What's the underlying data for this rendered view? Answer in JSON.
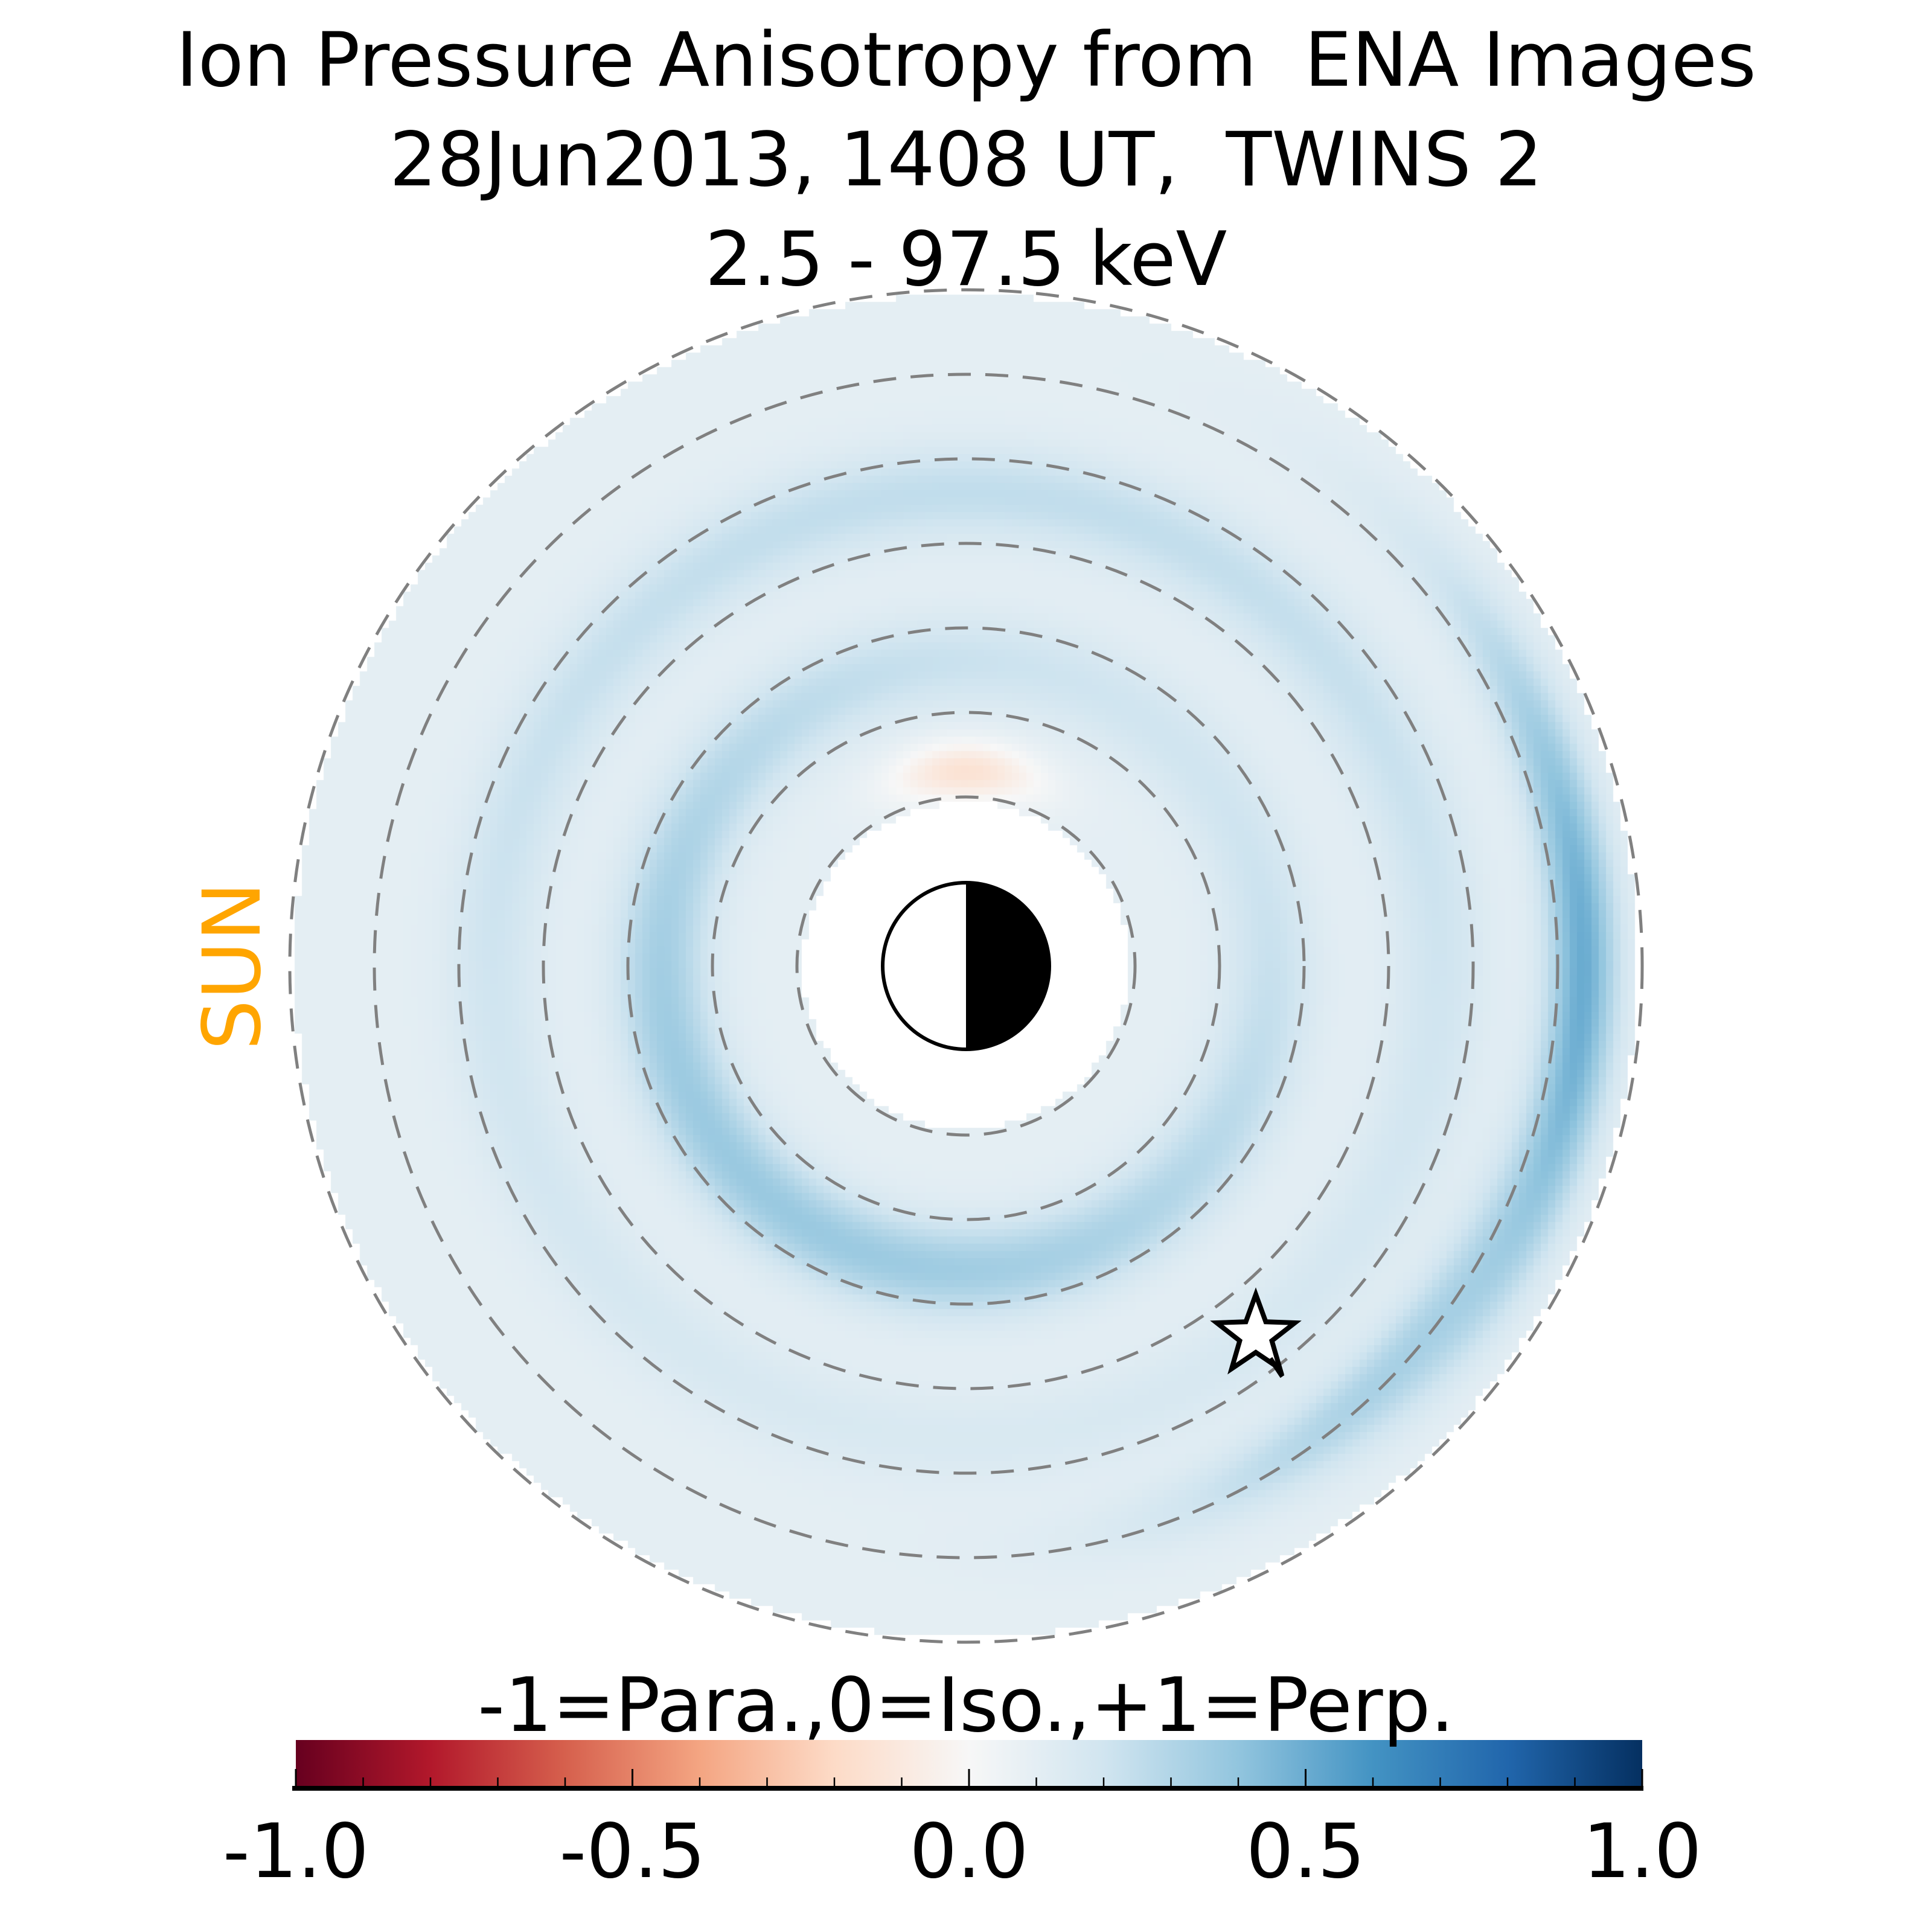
{
  "title": {
    "line1": "Ion Pressure Anisotropy from  ENA Images",
    "line2": "28Jun2013, 1408 UT,  TWINS 2",
    "line3": "2.5 - 97.5 keV"
  },
  "sun_label": "SUN",
  "sun_color": "#FFA500",
  "chart_data": {
    "type": "heatmap",
    "projection": "polar equatorial map, Sun to the left",
    "dashed_circle_radii_re": [
      2,
      3,
      4,
      5,
      6,
      7,
      8
    ],
    "inner_blank_radius_re": 2,
    "outer_radius_re": 8,
    "value_range": [
      -1,
      1
    ],
    "typical_values": {
      "background": 0.1,
      "inner_ring_r3_5": 0.35,
      "ring_r5_5": 0.25,
      "nightside_arc_r7_3": 0.5,
      "noon_inner_edge": -0.1
    },
    "marker": "star",
    "colorbar": {
      "label": "-1=Para.,0=Iso.,+1=Perp.",
      "ticks": [
        -1.0,
        -0.5,
        0.0,
        0.5,
        1.0
      ],
      "tick_labels": [
        "-1.0",
        "-0.5",
        "0.0",
        "0.5",
        "1.0"
      ],
      "colormap": "RdBu_r",
      "colors": [
        "#67001f",
        "#b2182b",
        "#d6604d",
        "#f4a582",
        "#fddbc7",
        "#f7f7f7",
        "#d1e5f0",
        "#92c5de",
        "#4393c3",
        "#2166ac",
        "#053061"
      ]
    }
  }
}
